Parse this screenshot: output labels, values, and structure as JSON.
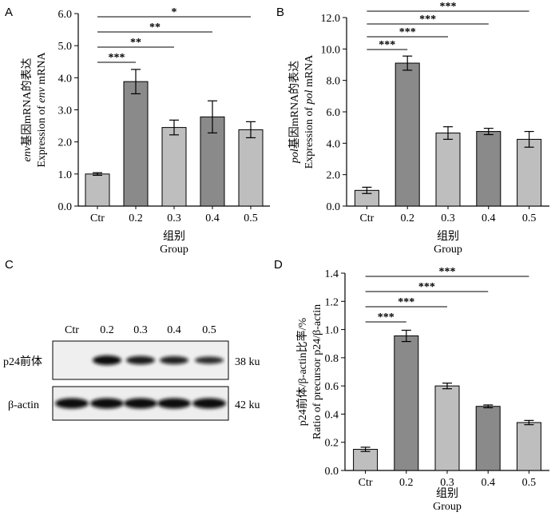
{
  "colors": {
    "light_bar": "#bebebe",
    "dark_bar": "#8a8a8a",
    "axis": "#000000"
  },
  "chart_data": [
    {
      "panel": "A",
      "type": "bar",
      "categories": [
        "Ctr",
        "0.2",
        "0.3",
        "0.4",
        "0.5"
      ],
      "values": [
        1.0,
        3.88,
        2.45,
        2.78,
        2.38
      ],
      "errors": [
        0.04,
        0.38,
        0.23,
        0.5,
        0.25
      ],
      "ylabel_cn_prefix": "env",
      "ylabel_cn": "基因mRNA的表达",
      "ylabel_en_pre": "Expression of ",
      "ylabel_en_italic": "env",
      "ylabel_en_post": " mRNA",
      "xlabel_cn": "组别",
      "xlabel_en": "Group",
      "ylim": [
        0,
        6
      ],
      "yticks": [
        "0.0",
        "1.0",
        "2.0",
        "3.0",
        "4.0",
        "5.0",
        "6.0"
      ],
      "significance": [
        {
          "target": "0.2",
          "label": "***"
        },
        {
          "target": "0.3",
          "label": "**"
        },
        {
          "target": "0.4",
          "label": "**"
        },
        {
          "target": "0.5",
          "label": "*"
        }
      ]
    },
    {
      "panel": "B",
      "type": "bar",
      "categories": [
        "Ctr",
        "0.2",
        "0.3",
        "0.4",
        "0.5"
      ],
      "values": [
        1.0,
        9.1,
        4.65,
        4.75,
        4.25
      ],
      "errors": [
        0.2,
        0.45,
        0.4,
        0.2,
        0.5
      ],
      "ylabel_cn_prefix": "pol",
      "ylabel_cn": "基因mRNA的表达",
      "ylabel_en_pre": "Expression of ",
      "ylabel_en_italic": "pol",
      "ylabel_en_post": " mRNA",
      "xlabel_cn": "组别",
      "xlabel_en": "Group",
      "ylim": [
        0,
        12
      ],
      "yticks": [
        "0.0",
        "2.0",
        "4.0",
        "6.0",
        "8.0",
        "10.0",
        "12.0"
      ],
      "significance": [
        {
          "target": "0.2",
          "label": "***"
        },
        {
          "target": "0.3",
          "label": "***"
        },
        {
          "target": "0.4",
          "label": "***"
        },
        {
          "target": "0.5",
          "label": "***"
        }
      ]
    },
    {
      "panel": "D",
      "type": "bar",
      "categories": [
        "Ctr",
        "0.2",
        "0.3",
        "0.4",
        "0.5"
      ],
      "values": [
        0.15,
        0.955,
        0.6,
        0.455,
        0.34
      ],
      "errors": [
        0.015,
        0.04,
        0.02,
        0.01,
        0.015
      ],
      "ylabel_cn_prefix": "",
      "ylabel_cn": "p24前体/β-actin比率/%",
      "ylabel_en_pre": "Ratio of precursor p24/β-actin",
      "ylabel_en_italic": "",
      "ylabel_en_post": "",
      "xlabel_cn": "组别",
      "xlabel_en": "Group",
      "ylim": [
        0,
        1.4
      ],
      "yticks": [
        "0.0",
        "0.2",
        "0.4",
        "0.6",
        "0.8",
        "1.0",
        "1.2",
        "1.4"
      ],
      "significance": [
        {
          "target": "0.2",
          "label": "***"
        },
        {
          "target": "0.3",
          "label": "***"
        },
        {
          "target": "0.4",
          "label": "***"
        },
        {
          "target": "0.5",
          "label": "***"
        }
      ]
    }
  ],
  "blot": {
    "panel": "C",
    "lanes": [
      "Ctr",
      "0.2",
      "0.3",
      "0.4",
      "0.5"
    ],
    "rows": [
      {
        "label": "p24前体",
        "size": "38 ku",
        "intensity": [
          0,
          1.0,
          0.85,
          0.8,
          0.7
        ]
      },
      {
        "label": "β-actin",
        "size": "42 ku",
        "intensity": [
          1.0,
          1.0,
          1.0,
          1.0,
          1.0
        ]
      }
    ]
  }
}
